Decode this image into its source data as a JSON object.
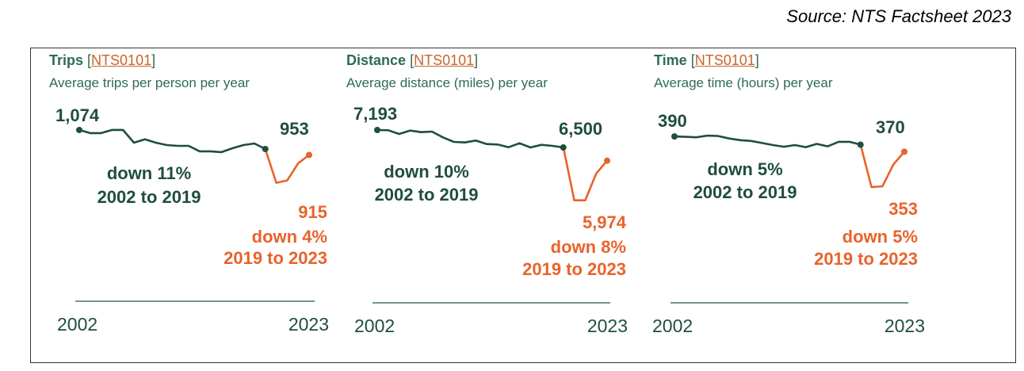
{
  "source": "Source: NTS Factsheet 2023",
  "colors": {
    "pre": "#1f4e3d",
    "post": "#e8632b",
    "link": "#c8642a",
    "axis": "#6e9a8a"
  },
  "chart_data": [
    {
      "type": "line",
      "title": "Trips",
      "link": "NTS0101",
      "subtitle": "Average trips per person per year",
      "x": [
        2002,
        2003,
        2004,
        2005,
        2006,
        2007,
        2008,
        2009,
        2010,
        2011,
        2012,
        2013,
        2014,
        2015,
        2016,
        2017,
        2018,
        2019,
        2020,
        2021,
        2022,
        2023
      ],
      "values": [
        1074,
        1054,
        1054,
        1074,
        1074,
        993,
        1014,
        993,
        978,
        973,
        973,
        938,
        938,
        933,
        958,
        978,
        988,
        953,
        738,
        753,
        862,
        915
      ],
      "ylim": [
        590,
        1245
      ],
      "start_label": "1,074",
      "mid_label": "953",
      "end_label": "915",
      "pre_change": "down 11%",
      "pre_period": "2002 to 2019",
      "post_change": "down 4%",
      "post_period": "2019 to 2023",
      "x_start": "2002",
      "x_end": "2023"
    },
    {
      "type": "line",
      "title": "Distance",
      "link": "NTS0101",
      "subtitle": "Average distance (miles) per year",
      "x": [
        2002,
        2003,
        2004,
        2005,
        2006,
        2007,
        2008,
        2009,
        2010,
        2011,
        2012,
        2013,
        2014,
        2015,
        2016,
        2017,
        2018,
        2019,
        2020,
        2021,
        2022,
        2023
      ],
      "values": [
        7193,
        7183,
        7035,
        7172,
        7109,
        7130,
        6899,
        6720,
        6698,
        6773,
        6635,
        6616,
        6509,
        6667,
        6500,
        6604,
        6563,
        6500,
        4400,
        4400,
        5460,
        5974
      ],
      "ylim": [
        4170,
        8264
      ],
      "start_label": "7,193",
      "mid_label": "6,500",
      "end_label": "5,974",
      "pre_change": "down 10%",
      "pre_period": "2002 to 2019",
      "post_change": "down 8%",
      "post_period": "2019 to 2023",
      "x_start": "2002",
      "x_end": "2023"
    },
    {
      "type": "line",
      "title": "Time",
      "link": "NTS0101",
      "subtitle": "Average time (hours) per year",
      "x": [
        2002,
        2003,
        2004,
        2005,
        2006,
        2007,
        2008,
        2009,
        2010,
        2011,
        2012,
        2013,
        2014,
        2015,
        2016,
        2017,
        2018,
        2019,
        2020,
        2021,
        2022,
        2023
      ],
      "values": [
        390,
        389,
        388,
        392,
        391,
        385,
        381,
        379,
        374,
        369,
        365,
        369,
        364,
        372,
        366,
        377,
        377,
        370,
        267,
        269,
        322,
        353
      ],
      "ylim": [
        221,
        471
      ],
      "start_label": "390",
      "mid_label": "370",
      "end_label": "353",
      "pre_change": "down 5%",
      "pre_period": "2002 to 2019",
      "post_change": "down 5%",
      "post_period": "2019 to 2023",
      "x_start": "2002",
      "x_end": "2023"
    }
  ]
}
